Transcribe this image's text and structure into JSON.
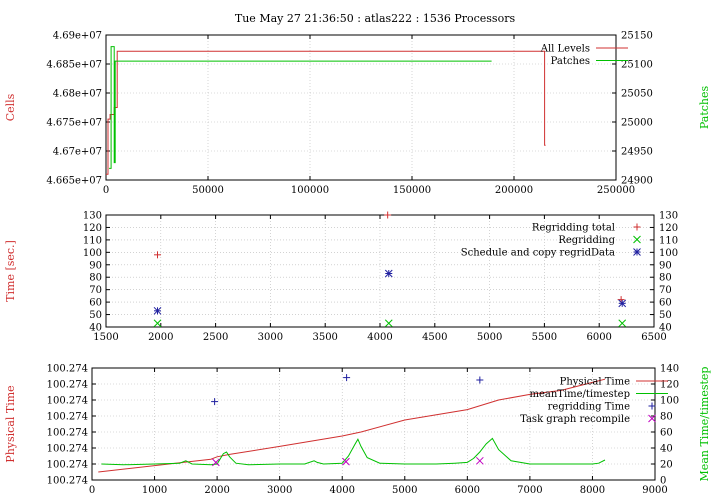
{
  "title": "Tue May 27 21:36:50 : atlas222 :  1536 Processors",
  "colors": {
    "red": "#d03030",
    "green": "#00c000",
    "blue": "#2020a0",
    "magenta": "#c000c0",
    "tick": "#000000"
  },
  "chart_data": [
    {
      "type": "line",
      "ylabel": "Cells",
      "y2label": "Patches",
      "xlim": [
        0,
        250000
      ],
      "ylim": [
        46650000,
        46900000
      ],
      "y2lim": [
        24900,
        25150
      ],
      "xticks": [
        "0",
        "50000",
        "100000",
        "150000",
        "200000",
        "250000"
      ],
      "yticks": [
        "4.665e+07",
        "4.67e+07",
        "4.675e+07",
        "4.68e+07",
        "4.685e+07",
        "4.69e+07"
      ],
      "y2ticks": [
        "24900",
        "24950",
        "25000",
        "25050",
        "25100",
        "25150"
      ],
      "grid": true,
      "legend": "top-right",
      "series": [
        {
          "name": "All Levels",
          "axis": "y",
          "color": "#d03030",
          "x": [
            0,
            1000,
            1000,
            2000,
            2000,
            4000,
            4000,
            5500,
            5500,
            215000,
            215000,
            215500
          ],
          "y": [
            46660000,
            46660000,
            46755000,
            46755000,
            46763000,
            46763000,
            46775000,
            46775000,
            46872000,
            46872000,
            46710000,
            46710000
          ]
        },
        {
          "name": "Patches",
          "axis": "y2",
          "color": "#00c000",
          "x": [
            1500,
            2500,
            2500,
            4000,
            4000,
            4500,
            4500,
            189000
          ],
          "y": [
            24920,
            24920,
            25130,
            25130,
            24930,
            24930,
            25105,
            25105
          ]
        }
      ]
    },
    {
      "type": "scatter",
      "ylabel": "Time [sec.]",
      "xlim": [
        1500,
        6500
      ],
      "ylim": [
        40,
        130
      ],
      "xticks": [
        "1500",
        "2000",
        "2500",
        "3000",
        "3500",
        "4000",
        "4500",
        "5000",
        "5500",
        "6000",
        "6500"
      ],
      "yticks": [
        "40",
        "50",
        "60",
        "70",
        "80",
        "90",
        "100",
        "110",
        "120",
        "130"
      ],
      "grid": true,
      "legend": "top-right",
      "series": [
        {
          "name": "Regridding total",
          "marker": "+",
          "color": "#d03030",
          "x": [
            1970,
            4070,
            6200
          ],
          "y": [
            98,
            130,
            62
          ]
        },
        {
          "name": "Regridding",
          "marker": "x",
          "color": "#00c000",
          "x": [
            1970,
            4080,
            6210
          ],
          "y": [
            43,
            43,
            43
          ]
        },
        {
          "name": "Schedule and copy regridData",
          "marker": "*",
          "color": "#2020a0",
          "x": [
            1970,
            4080,
            6210
          ],
          "y": [
            53,
            83,
            59
          ]
        }
      ]
    },
    {
      "type": "line",
      "ylabel": "Physical Time",
      "y2label": "Mean Time/timestep",
      "xlim": [
        0,
        9000
      ],
      "ylim": [
        0,
        7
      ],
      "y2lim": [
        0,
        140
      ],
      "xticks": [
        "0",
        "1000",
        "2000",
        "3000",
        "4000",
        "5000",
        "6000",
        "7000",
        "8000",
        "9000"
      ],
      "yticks": [
        "100.274",
        "100.274",
        "100.274",
        "100.274",
        "100.274",
        "100.274",
        "100.274",
        "100.274"
      ],
      "y2ticks": [
        "0",
        "20",
        "40",
        "60",
        "80",
        "100",
        "120",
        "140"
      ],
      "grid": true,
      "legend": "top-right",
      "series": [
        {
          "name": "Physical Time",
          "axis": "y",
          "color": "#d03030",
          "x": [
            100,
            1000,
            1900,
            2000,
            2200,
            3000,
            4000,
            4300,
            5000,
            6000,
            6500,
            7000,
            7500,
            8000,
            8200
          ],
          "y": [
            0.5,
            0.9,
            1.3,
            1.45,
            1.6,
            2.1,
            2.75,
            3.0,
            3.75,
            4.4,
            5.0,
            5.35,
            5.6,
            6.1,
            6.3
          ]
        },
        {
          "name": "meanTime/timestep",
          "axis": "y2",
          "color": "#00c000",
          "x": [
            150,
            500,
            1000,
            1400,
            1500,
            1600,
            1900,
            2000,
            2100,
            2150,
            2200,
            2300,
            2500,
            3000,
            3400,
            3550,
            3600,
            3700,
            4000,
            4100,
            4200,
            4250,
            4300,
            4400,
            4600,
            5000,
            5500,
            5800,
            6000,
            6100,
            6200,
            6300,
            6400,
            6500,
            6700,
            7000,
            7500,
            8000,
            8100,
            8200
          ],
          "y": [
            20,
            19,
            20,
            21,
            24,
            20,
            19,
            20,
            33,
            35,
            29,
            21,
            19,
            20,
            20,
            24,
            22,
            20,
            21,
            30,
            44,
            51,
            42,
            28,
            21,
            20,
            20,
            21,
            22,
            27,
            35,
            45,
            52,
            38,
            24,
            20,
            20,
            20,
            21,
            25
          ]
        },
        {
          "name": "regridding Time",
          "axis": "y2",
          "marker": "+",
          "color": "#2020a0",
          "x": [
            1960,
            4070,
            6200
          ],
          "y": [
            98,
            128,
            125
          ]
        },
        {
          "name": "Task graph recompile",
          "axis": "y2",
          "marker": "x",
          "color": "#c000c0",
          "x": [
            1980,
            4060,
            6200
          ],
          "y": [
            22,
            23,
            24
          ]
        }
      ]
    }
  ]
}
